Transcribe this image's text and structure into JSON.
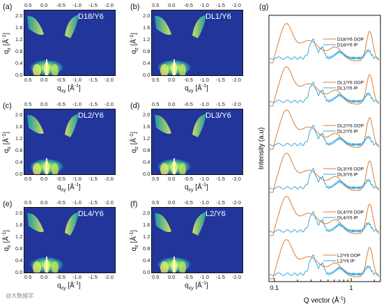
{
  "panels": [
    {
      "label": "(a)",
      "name": "D18/Y6"
    },
    {
      "label": "(b)",
      "name": "DL1/Y6"
    },
    {
      "label": "(c)",
      "name": "DL2/Y6"
    },
    {
      "label": "(d)",
      "name": "DL3/Y6"
    },
    {
      "label": "(e)",
      "name": "DL4/Y6"
    },
    {
      "label": "(f)",
      "name": "L2/Y6"
    }
  ],
  "gi_axes": {
    "x_ticks": [
      "0.5",
      "0.0",
      "-0.5",
      "-1.0",
      "-1.5",
      "-2.0"
    ],
    "y_ticks": [
      "0.0",
      "0.4",
      "0.8",
      "1.2",
      "1.6",
      "2.0"
    ],
    "xlabel": "q",
    "xlabel_sub": "xy",
    "xlabel_unit": " [Å",
    "xlabel_unit_sup": "-1",
    "xlabel_unit_end": "]",
    "ylabel": "q",
    "ylabel_sub": "z",
    "ylabel_unit": " [Å",
    "ylabel_unit_sup": "-1",
    "ylabel_unit_end": "]"
  },
  "colors": {
    "oop": "#e07b2a",
    "ip": "#3aa6db",
    "gi_bg": "#22359a"
  },
  "chart_data": {
    "type": "line",
    "label": "(g)",
    "xlabel": "Q vector (Å",
    "xlabel_sup": "-1",
    "xlabel_end": ")",
    "ylabel": "Intensity (a.u)",
    "x_scale": "log",
    "x_ticks": [
      "0.1",
      "1"
    ],
    "series": [
      {
        "name": "D18/Y6 OOP",
        "profile": "oop"
      },
      {
        "name": "D18/Y6 IP",
        "profile": "ip"
      },
      {
        "name": "DL1/Y6 OOP",
        "profile": "oop"
      },
      {
        "name": "DL1/Y6 IP",
        "profile": "ip"
      },
      {
        "name": "DL2/Y6 OOP",
        "profile": "oop"
      },
      {
        "name": "DL2/Y6 IP",
        "profile": "ip"
      },
      {
        "name": "DL3/Y6 OOP",
        "profile": "oop"
      },
      {
        "name": "DL3/Y6 IP",
        "profile": "ip"
      },
      {
        "name": "DL4/Y6 OOP",
        "profile": "oop"
      },
      {
        "name": "DL4/Y6 IP",
        "profile": "ip"
      },
      {
        "name": "L2/Y6 OOP",
        "profile": "oop"
      },
      {
        "name": "L2/Y6 IP",
        "profile": "ip"
      }
    ]
  },
  "watermark": "@大数据学"
}
